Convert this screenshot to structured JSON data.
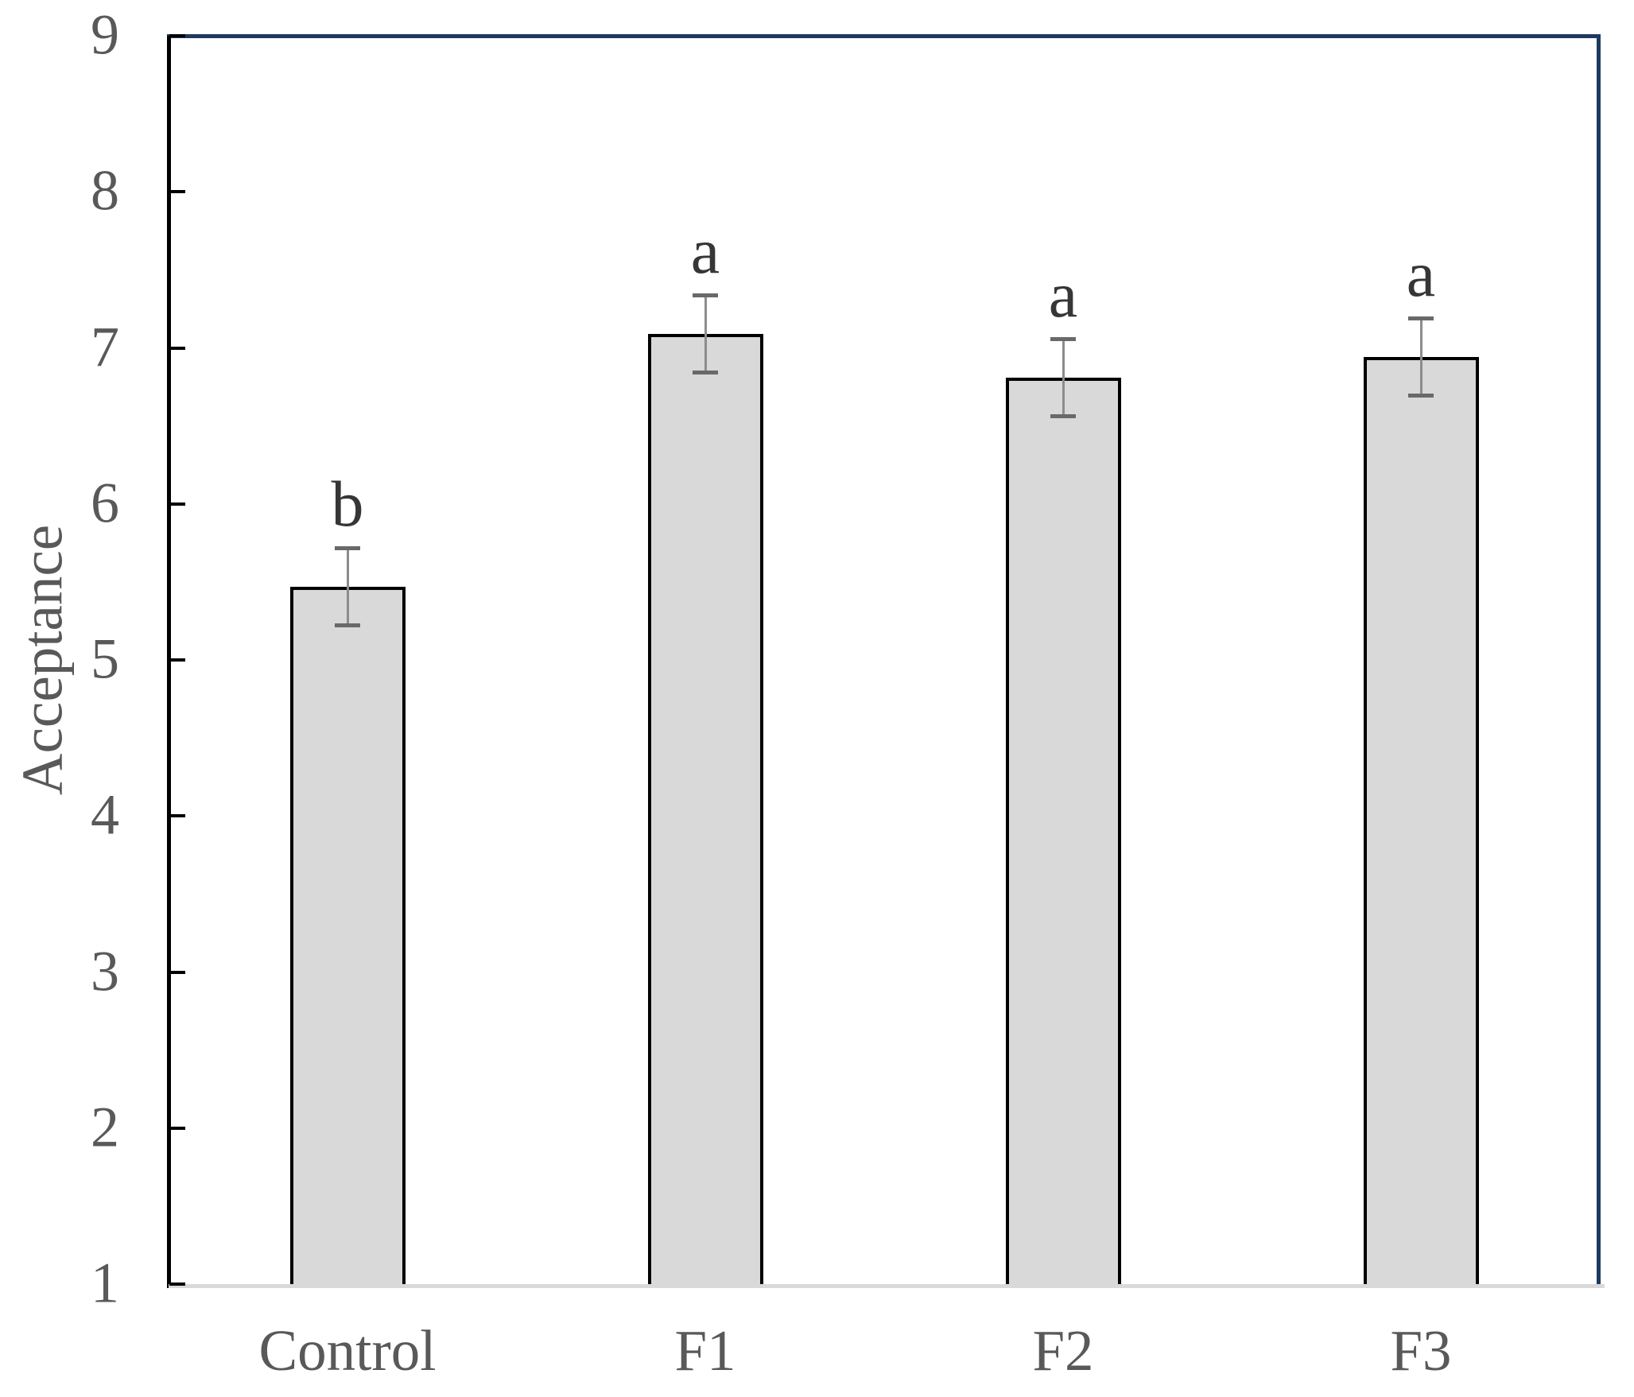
{
  "chart_data": {
    "type": "bar",
    "ylabel": "Acceptance",
    "categories": [
      "Control",
      "F1",
      "F2",
      "F3"
    ],
    "values": [
      5.47,
      7.09,
      6.81,
      6.94
    ],
    "error_bars": [
      0.25,
      0.25,
      0.25,
      0.25
    ],
    "sig_letters": [
      "b",
      "a",
      "a",
      "a"
    ],
    "ylim": [
      1,
      9
    ],
    "yticks": [
      1,
      2,
      3,
      4,
      5,
      6,
      7,
      8,
      9
    ],
    "grid": false,
    "legend": "none",
    "colors": {
      "bar_fill": "#d9d9d9",
      "bar_border": "#000000",
      "error_line": "#8c8c8c",
      "error_cap": "#696969",
      "frame_accent": "#1f3a60",
      "axis_line": "#000000",
      "baseline": "#d9d9d9",
      "tick_label": "#595959",
      "sig_letter": "#363636"
    }
  }
}
